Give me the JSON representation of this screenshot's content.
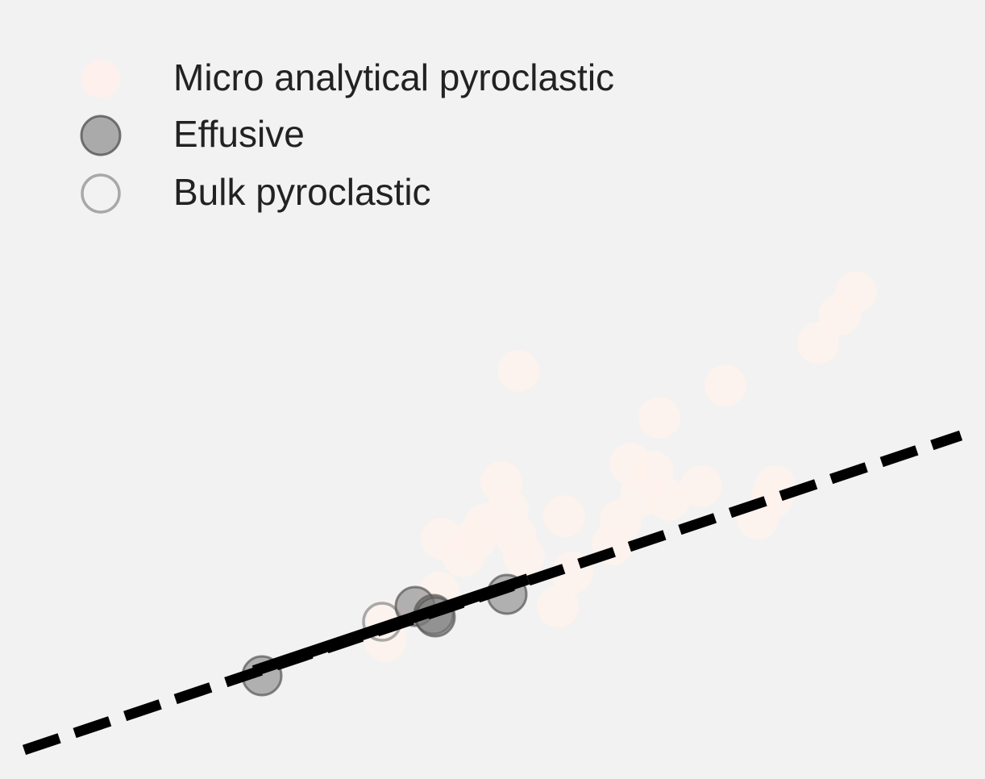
{
  "chart_data": {
    "type": "scatter",
    "title": "",
    "xlabel": "",
    "ylabel": "",
    "grid": false,
    "legend_position": "top-left",
    "colors": {
      "background": "#f2f2f2",
      "micro_fill": "#fff1ec",
      "effusive_fill": "#7a7a7a",
      "effusive_stroke": "#555555",
      "bulk_stroke": "#a8a8a8",
      "line": "#000000",
      "text": "#222222"
    },
    "series": [
      {
        "name": "Micro analytical pyroclastic",
        "style": "filled-light",
        "points": [
          [
            643,
            460
          ],
          [
            1062,
            362
          ],
          [
            1042,
            390
          ],
          [
            1015,
            425
          ],
          [
            900,
            478
          ],
          [
            818,
            518
          ],
          [
            622,
            598
          ],
          [
            782,
            575
          ],
          [
            810,
            585
          ],
          [
            870,
            603
          ],
          [
            962,
            603
          ],
          [
            958,
            617
          ],
          [
            940,
            643
          ],
          [
            700,
            640
          ],
          [
            630,
            632
          ],
          [
            602,
            650
          ],
          [
            590,
            668
          ],
          [
            548,
            668
          ],
          [
            640,
            665
          ],
          [
            650,
            690
          ],
          [
            575,
            690
          ],
          [
            770,
            645
          ],
          [
            795,
            615
          ],
          [
            830,
            620
          ],
          [
            760,
            675
          ],
          [
            710,
            710
          ],
          [
            545,
            735
          ],
          [
            692,
            752
          ],
          [
            478,
            795
          ],
          [
            480,
            770
          ]
        ]
      },
      {
        "name": "Effusive",
        "style": "filled-dark",
        "points": [
          [
            325,
            838
          ],
          [
            515,
            752
          ],
          [
            538,
            762
          ],
          [
            540,
            765
          ],
          [
            629,
            737
          ]
        ]
      },
      {
        "name": "Bulk pyroclastic",
        "style": "hollow",
        "points": [
          [
            474,
            771
          ]
        ]
      }
    ],
    "lines": [
      {
        "style": "dashed",
        "from": [
          30,
          930
        ],
        "to": [
          1192,
          540
        ]
      },
      {
        "style": "solid",
        "from": [
          315,
          832
        ],
        "to": [
          655,
          718
        ]
      }
    ]
  }
}
